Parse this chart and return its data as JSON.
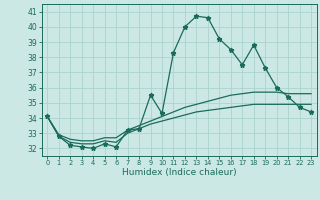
{
  "xlabel": "Humidex (Indice chaleur)",
  "bg_color": "#cce8e4",
  "line_color": "#1a6b5a",
  "grid_color": "#aad4cc",
  "x_ticks": [
    0,
    1,
    2,
    3,
    4,
    5,
    6,
    7,
    8,
    9,
    10,
    11,
    12,
    13,
    14,
    15,
    16,
    17,
    18,
    19,
    20,
    21,
    22,
    23
  ],
  "ylim": [
    31.5,
    41.5
  ],
  "xlim": [
    -0.5,
    23.5
  ],
  "yticks": [
    32,
    33,
    34,
    35,
    36,
    37,
    38,
    39,
    40,
    41
  ],
  "series_main": [
    34.1,
    32.8,
    32.2,
    32.1,
    32.0,
    32.3,
    32.1,
    33.2,
    33.3,
    35.5,
    34.3,
    38.3,
    40.0,
    40.7,
    40.6,
    39.2,
    38.5,
    37.5,
    38.8,
    37.3,
    36.0,
    35.4,
    34.7,
    34.4
  ],
  "series_low": [
    34.1,
    32.8,
    32.4,
    32.3,
    32.3,
    32.5,
    32.4,
    33.0,
    33.3,
    33.6,
    33.8,
    34.0,
    34.2,
    34.4,
    34.5,
    34.6,
    34.7,
    34.8,
    34.9,
    34.9,
    34.9,
    34.9,
    34.9,
    34.9
  ],
  "series_mid": [
    34.1,
    32.9,
    32.6,
    32.5,
    32.5,
    32.7,
    32.7,
    33.2,
    33.5,
    33.8,
    34.1,
    34.4,
    34.7,
    34.9,
    35.1,
    35.3,
    35.5,
    35.6,
    35.7,
    35.7,
    35.7,
    35.6,
    35.6,
    35.6
  ],
  "marker": "*",
  "markersize": 3.5,
  "linewidth": 0.9
}
